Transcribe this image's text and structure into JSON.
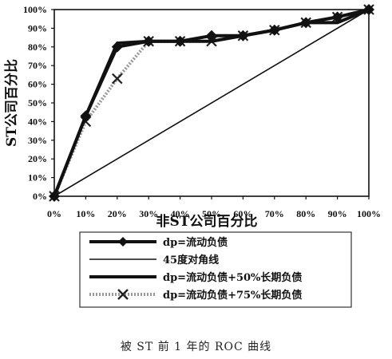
{
  "caption": "被 ST 前 1 年的 ROC 曲线",
  "chart_data": {
    "type": "line",
    "xlabel": "非ST公司百分比",
    "ylabel": "ST公司百分比",
    "xlim": [
      0,
      100
    ],
    "ylim": [
      0,
      100
    ],
    "x_ticks": [
      "0%",
      "10%",
      "20%",
      "30%",
      "40%",
      "50%",
      "60%",
      "70%",
      "80%",
      "90%",
      "100%"
    ],
    "y_ticks": [
      "0%",
      "10%",
      "20%",
      "30%",
      "40%",
      "50%",
      "60%",
      "70%",
      "80%",
      "90%",
      "100%"
    ],
    "grid": false,
    "legend_position": "bottom",
    "series": [
      {
        "name": "dp=流动负债",
        "style": "thick-solid",
        "marker": "diamond",
        "color": "#111111",
        "x": [
          0,
          10,
          20,
          30,
          40,
          50,
          60,
          70,
          80,
          90,
          100
        ],
        "y": [
          0,
          43,
          80,
          83,
          83,
          86,
          86,
          89,
          93,
          96,
          100
        ]
      },
      {
        "name": "45度对角线",
        "style": "thin-solid",
        "marker": "none",
        "color": "#111111",
        "x": [
          0,
          100
        ],
        "y": [
          0,
          100
        ]
      },
      {
        "name": "dp=流动负债+50%长期负债",
        "style": "thick-solid",
        "marker": "none",
        "color": "#111111",
        "x": [
          0,
          10,
          20,
          30,
          40,
          50,
          60,
          70,
          80,
          90,
          100
        ],
        "y": [
          0,
          43,
          82,
          83,
          83,
          83,
          86,
          89,
          93,
          93,
          100
        ]
      },
      {
        "name": "dp=流动负债+75%长期负债",
        "style": "dotted-gray",
        "marker": "x",
        "color": "#999999",
        "x": [
          0,
          10,
          20,
          30,
          40,
          50,
          60,
          70,
          80,
          90,
          100
        ],
        "y": [
          0,
          40,
          63,
          83,
          83,
          83,
          86,
          89,
          93,
          96,
          100
        ]
      }
    ]
  }
}
